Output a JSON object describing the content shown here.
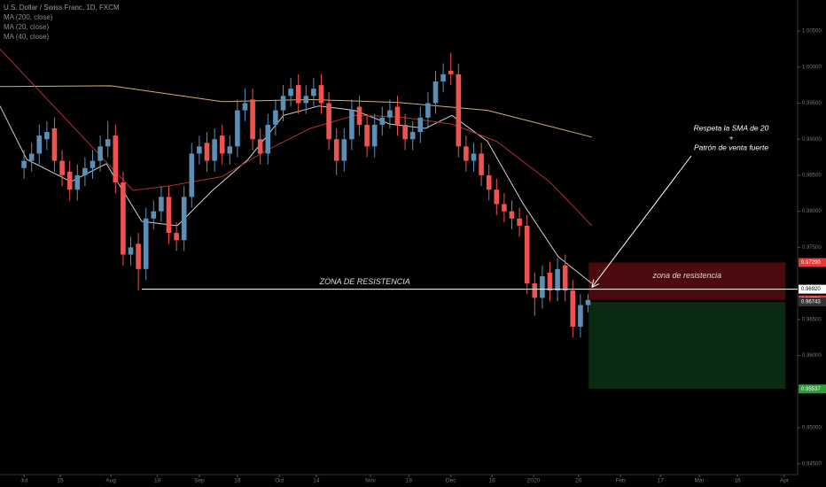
{
  "chart_data": {
    "type": "candlestick",
    "title": "U.S. Dollar / Swiss Franc, 1D, FXCM",
    "colors": {
      "up": "#5c8fb8",
      "down": "#ef5350"
    },
    "x": [
      0,
      2,
      4,
      6,
      8,
      10,
      12,
      14,
      16,
      18,
      20,
      22,
      24,
      26,
      28,
      30,
      32,
      34,
      36,
      38,
      40,
      42,
      44,
      46,
      48,
      50,
      52,
      54,
      56,
      58,
      60,
      62,
      64,
      66,
      68,
      70,
      72,
      74,
      76,
      78,
      80,
      82,
      84,
      86,
      88,
      90,
      92,
      94,
      96,
      98,
      100,
      102,
      104,
      106,
      108,
      110,
      112,
      114,
      116,
      118,
      120,
      122,
      124,
      126,
      128,
      130,
      132,
      134,
      136,
      138,
      140,
      142,
      144,
      146,
      148
    ],
    "open": [
      0.986,
      0.987,
      0.988,
      0.99,
      0.9915,
      0.987,
      0.9855,
      0.983,
      0.985,
      0.986,
      0.987,
      0.989,
      0.9905,
      0.984,
      0.974,
      0.9755,
      0.972,
      0.979,
      0.98,
      0.982,
      0.977,
      0.976,
      0.982,
      0.988,
      0.9895,
      0.987,
      0.9905,
      0.988,
      0.989,
      0.994,
      0.9955,
      0.99,
      0.988,
      0.992,
      0.994,
      0.996,
      0.9975,
      0.995,
      0.996,
      0.9975,
      0.995,
      0.99,
      0.987,
      0.99,
      0.9945,
      0.992,
      0.989,
      0.992,
      0.993,
      0.9945,
      0.992,
      0.99,
      0.991,
      0.993,
      0.995,
      0.998,
      0.9995,
      0.999,
      0.989,
      0.987,
      0.988,
      0.985,
      0.983,
      0.981,
      0.98,
      0.979,
      0.978,
      0.97,
      0.968,
      0.9715,
      0.969,
      0.9725,
      0.969,
      0.964,
      0.967
    ],
    "high": [
      0.9885,
      0.9895,
      0.992,
      0.9925,
      0.993,
      0.9885,
      0.987,
      0.9865,
      0.9875,
      0.9885,
      0.9905,
      0.9925,
      0.992,
      0.9855,
      0.9765,
      0.977,
      0.9805,
      0.9815,
      0.9835,
      0.9835,
      0.9785,
      0.9835,
      0.9895,
      0.9905,
      0.991,
      0.9915,
      0.992,
      0.9905,
      0.9955,
      0.997,
      0.997,
      0.9915,
      0.9935,
      0.9955,
      0.9975,
      0.9985,
      0.999,
      0.9975,
      0.9985,
      0.999,
      0.9965,
      0.9915,
      0.9915,
      0.9955,
      0.996,
      0.9935,
      0.9935,
      0.9945,
      0.9955,
      0.996,
      0.9935,
      0.9925,
      0.9945,
      0.9965,
      0.9995,
      1.0005,
      1.002,
      1.0005,
      0.9905,
      0.9895,
      0.9895,
      0.9865,
      0.9845,
      0.9825,
      0.9815,
      0.9805,
      0.9795,
      0.9715,
      0.9725,
      0.973,
      0.9735,
      0.974,
      0.9705,
      0.9685,
      0.9685
    ],
    "low": [
      0.9845,
      0.9855,
      0.9865,
      0.9885,
      0.9855,
      0.9835,
      0.9815,
      0.9815,
      0.9835,
      0.9845,
      0.9855,
      0.9875,
      0.9825,
      0.9725,
      0.9725,
      0.969,
      0.9705,
      0.9775,
      0.9785,
      0.9755,
      0.9745,
      0.9745,
      0.9805,
      0.9865,
      0.9855,
      0.9855,
      0.9865,
      0.9865,
      0.9875,
      0.9925,
      0.9885,
      0.9865,
      0.9865,
      0.9905,
      0.9925,
      0.9945,
      0.9935,
      0.9935,
      0.9945,
      0.9935,
      0.9885,
      0.985,
      0.9855,
      0.9885,
      0.9905,
      0.9875,
      0.9875,
      0.9905,
      0.9915,
      0.9905,
      0.9885,
      0.9885,
      0.9895,
      0.9915,
      0.9935,
      0.9965,
      0.9975,
      0.9875,
      0.9855,
      0.9855,
      0.9835,
      0.9815,
      0.9795,
      0.9785,
      0.9775,
      0.9765,
      0.9685,
      0.9655,
      0.9665,
      0.9675,
      0.9675,
      0.9675,
      0.9625,
      0.9625,
      0.966
    ],
    "close": [
      0.987,
      0.988,
      0.9905,
      0.991,
      0.987,
      0.985,
      0.983,
      0.985,
      0.986,
      0.987,
      0.989,
      0.99,
      0.984,
      0.974,
      0.975,
      0.972,
      0.979,
      0.98,
      0.982,
      0.977,
      0.976,
      0.982,
      0.988,
      0.989,
      0.987,
      0.99,
      0.988,
      0.989,
      0.994,
      0.995,
      0.99,
      0.988,
      0.992,
      0.994,
      0.996,
      0.997,
      0.995,
      0.996,
      0.997,
      0.995,
      0.99,
      0.987,
      0.99,
      0.994,
      0.992,
      0.989,
      0.992,
      0.993,
      0.994,
      0.992,
      0.99,
      0.991,
      0.993,
      0.995,
      0.998,
      0.999,
      0.999,
      0.989,
      0.987,
      0.988,
      0.985,
      0.983,
      0.981,
      0.98,
      0.979,
      0.978,
      0.97,
      0.968,
      0.971,
      0.969,
      0.972,
      0.969,
      0.964,
      0.967,
      0.9677
    ],
    "indicators": [
      {
        "name": "MA (200, close)",
        "color": "#d4b36a",
        "x": [
          -6.3,
          22.8,
          51.9,
          75.1,
          98.4,
          121.6,
          149
        ],
        "values": [
          0.9973,
          0.9974,
          0.9952,
          0.9955,
          0.9951,
          0.994,
          0.9903
        ]
      },
      {
        "name": "MA (20, close)",
        "color": "#cfcfcf",
        "x": [
          -6.3,
          0.7,
          12.3,
          21.6,
          30.9,
          40.2,
          49.5,
          58.8,
          68.1,
          77.4,
          86.7,
          96,
          105.3,
          112.3,
          121.6,
          130.9,
          140.2,
          149
        ],
        "values": [
          0.9946,
          0.9872,
          0.9841,
          0.9866,
          0.9786,
          0.978,
          0.9829,
          0.9872,
          0.9933,
          0.9946,
          0.994,
          0.9921,
          0.9915,
          0.9933,
          0.9897,
          0.9811,
          0.9737,
          0.97
        ]
      },
      {
        "name": "MA (40, close)",
        "color": "#b22f2f",
        "x": [
          -6.3,
          28.6,
          37.9,
          51.9,
          63.5,
          75.1,
          86.7,
          98.4,
          112.3,
          124,
          137.9,
          149
        ],
        "values": [
          1.0025,
          0.9829,
          0.9835,
          0.9848,
          0.9884,
          0.9915,
          0.9933,
          0.9931,
          0.9921,
          0.9897,
          0.9841,
          0.978
        ]
      }
    ],
    "xlim": [
      -6.3,
      203
    ],
    "xticks": [
      {
        "value": 0,
        "label": "Jul"
      },
      {
        "value": 9.5,
        "label": "15"
      },
      {
        "value": 22.8,
        "label": "Aug"
      },
      {
        "value": 35,
        "label": "19"
      },
      {
        "value": 46,
        "label": "Sep"
      },
      {
        "value": 56,
        "label": "16"
      },
      {
        "value": 67,
        "label": "Oct"
      },
      {
        "value": 76.7,
        "label": "14"
      },
      {
        "value": 90.9,
        "label": "Nov"
      },
      {
        "value": 101,
        "label": "18"
      },
      {
        "value": 112,
        "label": "Dec"
      },
      {
        "value": 122.8,
        "label": "16"
      },
      {
        "value": 133.7,
        "label": "2020"
      },
      {
        "value": 145.5,
        "label": "20"
      },
      {
        "value": 156.5,
        "label": "Feb"
      },
      {
        "value": 167,
        "label": "17"
      },
      {
        "value": 177.2,
        "label": "Mar"
      },
      {
        "value": 187.2,
        "label": "16"
      },
      {
        "value": 199.5,
        "label": "Apr"
      }
    ],
    "ylim": [
      0.943,
      1.0093
    ],
    "yticks": [
      {
        "value": 1.005,
        "label": "1.00500"
      },
      {
        "value": 1.0,
        "label": "1.00000"
      },
      {
        "value": 0.995,
        "label": "0.99500"
      },
      {
        "value": 0.99,
        "label": "0.99000"
      },
      {
        "value": 0.985,
        "label": "0.98500"
      },
      {
        "value": 0.98,
        "label": "0.98000"
      },
      {
        "value": 0.975,
        "label": "0.97500"
      },
      {
        "value": 0.965,
        "label": "0.96500"
      },
      {
        "value": 0.96,
        "label": "0.96000"
      },
      {
        "value": 0.95,
        "label": "0.95000"
      },
      {
        "value": 0.945,
        "label": "0.94500"
      }
    ],
    "resistance": {
      "value": 0.9692,
      "label": "0.96920",
      "text": "ZONA DE RESISTENCIA",
      "x_start": 30.9
    },
    "zones": [
      {
        "x_range": [
          148.2,
          199.8
        ],
        "top": 0.9729,
        "bottom": 0.96772,
        "color": "#4a0a0e",
        "text": "zona de resistencia"
      },
      {
        "x_range": [
          148.2,
          199.8
        ],
        "top": 0.96743,
        "bottom": 0.95537,
        "color": "#0a2a12"
      }
    ],
    "price_labels": [
      {
        "value": 0.9729,
        "label": "0.97290",
        "color": "#e53935"
      },
      {
        "value": 0.96772,
        "label": "0.96772",
        "color": "#e53935"
      },
      {
        "value": 0.96743,
        "label": "0.96743",
        "color": "#333333"
      },
      {
        "value": 0.95537,
        "label": "0.95537",
        "color": "#2e9e3a"
      }
    ],
    "annotation": {
      "lines": [
        "Respeta la SMA de 20",
        "+",
        "Patrón de venta fuerte"
      ],
      "target": [
        149,
        0.9692
      ]
    }
  }
}
